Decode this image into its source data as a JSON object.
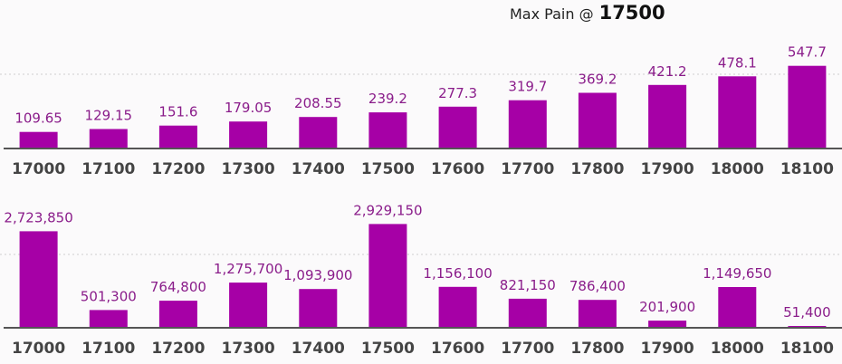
{
  "header": {
    "label": "Max Pain @",
    "value": "17500"
  },
  "colors": {
    "bar": "#a600a6",
    "label": "#8a1c8a",
    "axis": "#555555",
    "background": "#fbfafb"
  },
  "chart_data": [
    {
      "type": "bar",
      "categories": [
        "17000",
        "17100",
        "17200",
        "17300",
        "17400",
        "17500",
        "17600",
        "17700",
        "17800",
        "17900",
        "18000",
        "18100"
      ],
      "values": [
        109.65,
        129.15,
        151.6,
        179.05,
        208.55,
        239.2,
        277.3,
        319.7,
        369.2,
        421.2,
        478.1,
        547.7
      ],
      "data_labels": [
        "109.65",
        "129.15",
        "151.6",
        "179.05",
        "208.55",
        "239.2",
        "277.3",
        "319.7",
        "369.2",
        "421.2",
        "478.1",
        "547.7"
      ],
      "ylim": [
        0,
        630
      ],
      "grid": true
    },
    {
      "type": "bar",
      "categories": [
        "17000",
        "17100",
        "17200",
        "17300",
        "17400",
        "17500",
        "17600",
        "17700",
        "17800",
        "17900",
        "18000",
        "18100"
      ],
      "values": [
        2723850,
        501300,
        764800,
        1275700,
        1093900,
        2929150,
        1156100,
        821150,
        786400,
        201900,
        1149650,
        51400
      ],
      "data_labels": [
        "2,723,850",
        "501,300",
        "764,800",
        "1,275,700",
        "1,093,900",
        "2,929,150",
        "1,156,100",
        "821,150",
        "786,400",
        "201,900",
        "1,149,650",
        "51,400"
      ],
      "ylim": [
        0,
        3450000
      ],
      "grid": true
    }
  ]
}
